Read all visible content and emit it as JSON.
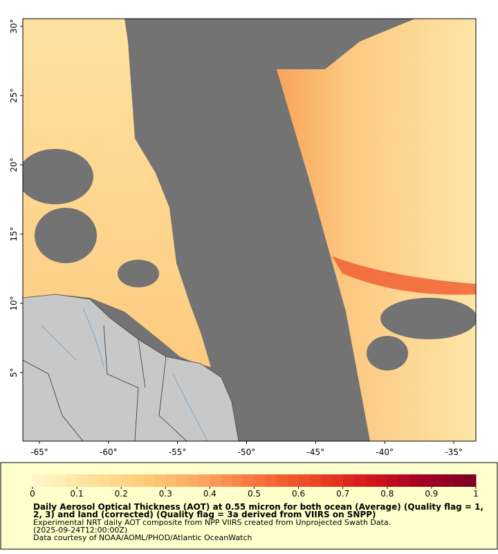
{
  "map": {
    "xlim": [
      -66.2,
      -33.4
    ],
    "ylim": [
      0.05,
      30.55
    ],
    "lon_ticks": [
      {
        "value": -65,
        "label": "-65°"
      },
      {
        "value": -60,
        "label": "-60°"
      },
      {
        "value": -55,
        "label": "-55°"
      },
      {
        "value": -50,
        "label": "-50°"
      },
      {
        "value": -45,
        "label": "-45°"
      },
      {
        "value": -40,
        "label": "-40°"
      },
      {
        "value": -35,
        "label": "-35°"
      }
    ],
    "lat_ticks": [
      {
        "value": 5,
        "label": "5°"
      },
      {
        "value": 10,
        "label": "10°"
      },
      {
        "value": 15,
        "label": "15°"
      },
      {
        "value": 20,
        "label": "20°"
      },
      {
        "value": 25,
        "label": "25°"
      },
      {
        "value": 30,
        "label": "30°"
      }
    ]
  },
  "colorbar": {
    "range": [
      0,
      1
    ],
    "ticks": [
      0,
      0.1,
      0.2,
      0.3,
      0.4,
      0.5,
      0.6,
      0.7,
      0.8,
      0.9,
      1
    ],
    "colors": [
      "#fff6cc",
      "#fee39a",
      "#fdcd7c",
      "#fba862",
      "#f7763f",
      "#ec4a25",
      "#d7191c",
      "#a50026",
      "#7a0020"
    ]
  },
  "caption": {
    "title_lines": [
      "Daily Aerosol Optical Thickness (AOT) at 0.55 micron for both ocean (Average) (Quality flag = 1,",
      "2, 3) and land (corrected) (Quality flag = 3a derived from VIIRS on SNPP)"
    ],
    "lines": [
      "Experimental NRT daily AOT composite from NPP VIIRS created from Unprojected Swath Data.",
      "(2025-09-24T12:00:00Z)",
      "Data courtesy of NOAA/AOML/PHOD/Atlantic OceanWatch"
    ]
  }
}
